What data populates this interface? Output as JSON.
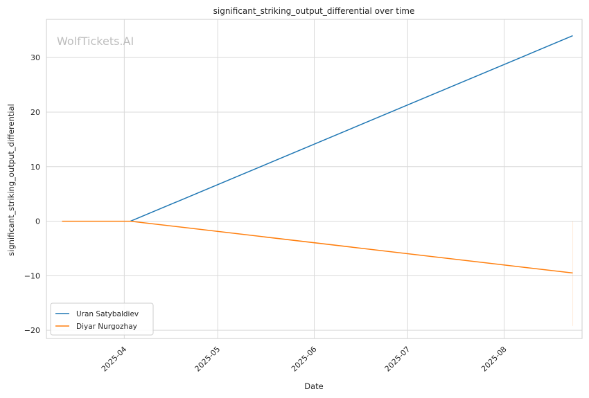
{
  "chart_data": {
    "type": "line",
    "title": "significant_striking_output_differential over time",
    "xlabel": "Date",
    "ylabel": "significant_striking_output_differential",
    "watermark": "WolfTickets.AI",
    "xlim": [
      "2025-03-07",
      "2025-08-26"
    ],
    "ylim": [
      -21.5,
      37
    ],
    "x_ticks": [
      "2025-04-01",
      "2025-05-01",
      "2025-06-01",
      "2025-07-01",
      "2025-08-01"
    ],
    "x_tick_labels": [
      "2025-04",
      "2025-05",
      "2025-06",
      "2025-07",
      "2025-08"
    ],
    "y_ticks": [
      -20,
      -10,
      0,
      10,
      20,
      30
    ],
    "y_tick_labels": [
      "−20",
      "−10",
      "0",
      "10",
      "20",
      "30"
    ],
    "grid": true,
    "legend": "lower-left",
    "series": [
      {
        "name": "Uran Satybaldiev",
        "color": "#1f77b4",
        "points": [
          [
            "2025-04-03",
            0
          ],
          [
            "2025-08-23",
            34
          ]
        ]
      },
      {
        "name": "Diyar Nurgozhay",
        "color": "#ff7f0e",
        "points": [
          [
            "2025-03-12",
            0
          ],
          [
            "2025-04-03",
            0
          ],
          [
            "2025-08-23",
            -9.5
          ]
        ],
        "band": {
          "x": "2025-08-23",
          "y": [
            -19.2,
            0
          ]
        }
      }
    ]
  }
}
